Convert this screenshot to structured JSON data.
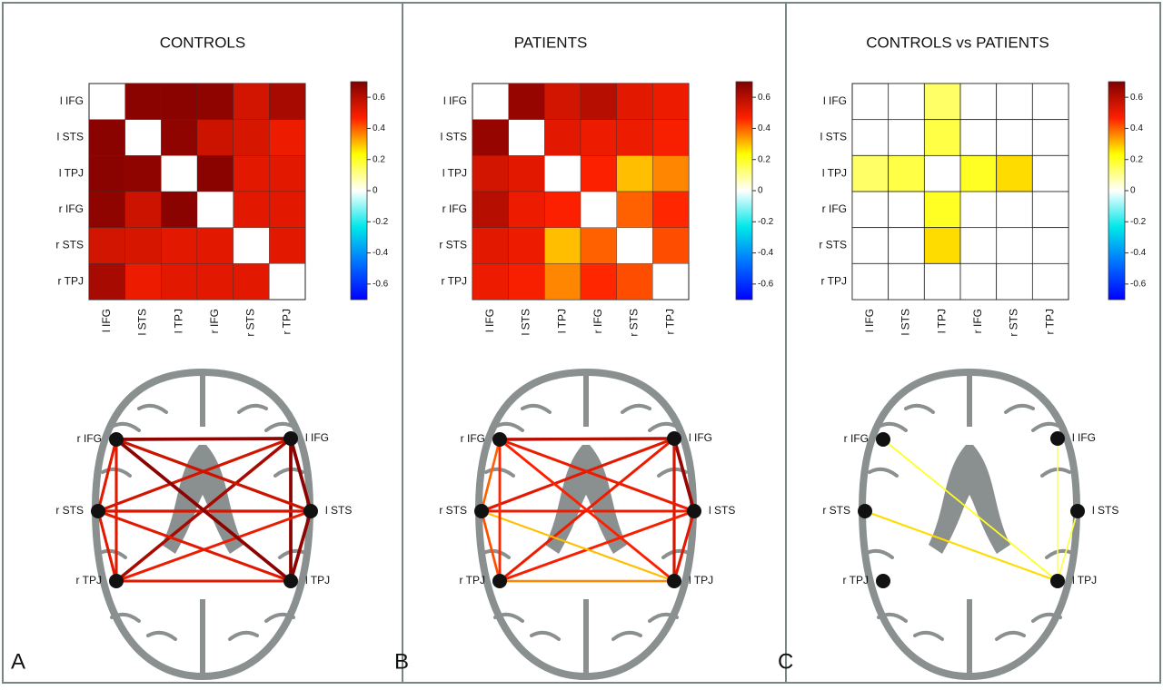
{
  "chart_data": [
    {
      "type": "heatmap",
      "panel_label": "A",
      "title": "CONTROLS",
      "categories": [
        "l IFG",
        "l STS",
        "l TPJ",
        "r IFG",
        "r STS",
        "r TPJ"
      ],
      "values": [
        [
          null,
          0.68,
          0.68,
          0.67,
          0.55,
          0.63
        ],
        [
          0.68,
          null,
          0.67,
          0.56,
          0.54,
          0.5
        ],
        [
          0.68,
          0.67,
          null,
          0.68,
          0.52,
          0.52
        ],
        [
          0.67,
          0.56,
          0.68,
          null,
          0.52,
          0.52
        ],
        [
          0.55,
          0.54,
          0.52,
          0.52,
          null,
          0.52
        ],
        [
          0.63,
          0.5,
          0.52,
          0.52,
          0.52,
          null
        ]
      ],
      "colors": [
        "#0000ff",
        "#0070ff",
        "#00e8e8",
        "#ffffff",
        "#ffff00",
        "#ff2000",
        "#800000"
      ],
      "zlim": [
        -0.7,
        0.7
      ],
      "zticks": [
        0.6,
        0.4,
        0.2,
        0,
        -0.2,
        -0.4,
        -0.6
      ]
    },
    {
      "type": "heatmap",
      "panel_label": "B",
      "title": "PATIENTS",
      "categories": [
        "l IFG",
        "l STS",
        "l TPJ",
        "r IFG",
        "r STS",
        "r TPJ"
      ],
      "values": [
        [
          null,
          0.66,
          0.55,
          0.6,
          0.52,
          0.5
        ],
        [
          0.66,
          null,
          0.52,
          0.5,
          0.5,
          0.48
        ],
        [
          0.55,
          0.52,
          null,
          0.47,
          0.3,
          0.36
        ],
        [
          0.6,
          0.5,
          0.47,
          null,
          0.4,
          0.46
        ],
        [
          0.52,
          0.5,
          0.3,
          0.4,
          null,
          0.42
        ],
        [
          0.5,
          0.48,
          0.36,
          0.46,
          0.42,
          null
        ]
      ],
      "colors": [
        "#0000ff",
        "#0070ff",
        "#00e8e8",
        "#ffffff",
        "#ffff00",
        "#ff2000",
        "#800000"
      ],
      "zlim": [
        -0.7,
        0.7
      ],
      "zticks": [
        0.6,
        0.4,
        0.2,
        0,
        -0.2,
        -0.4,
        -0.6
      ]
    },
    {
      "type": "heatmap",
      "panel_label": "C",
      "title": "CONTROLS vs PATIENTS",
      "categories": [
        "l IFG",
        "l STS",
        "l TPJ",
        "r IFG",
        "r STS",
        "r TPJ"
      ],
      "values": [
        [
          null,
          0,
          0.14,
          0,
          0,
          0
        ],
        [
          0,
          null,
          0.17,
          0,
          0,
          0
        ],
        [
          0.14,
          0.17,
          null,
          0.2,
          0.27,
          0
        ],
        [
          0,
          0,
          0.2,
          null,
          0,
          0
        ],
        [
          0,
          0,
          0.27,
          0,
          null,
          0
        ],
        [
          0,
          0,
          0,
          0,
          0,
          null
        ]
      ],
      "colors": [
        "#0000ff",
        "#0070ff",
        "#00e8e8",
        "#ffffff",
        "#ffff00",
        "#ff2000",
        "#800000"
      ],
      "zlim": [
        -0.7,
        0.7
      ],
      "zticks": [
        0.6,
        0.4,
        0.2,
        0,
        -0.2,
        -0.4,
        -0.6
      ],
      "cell_borders": true
    }
  ]
}
